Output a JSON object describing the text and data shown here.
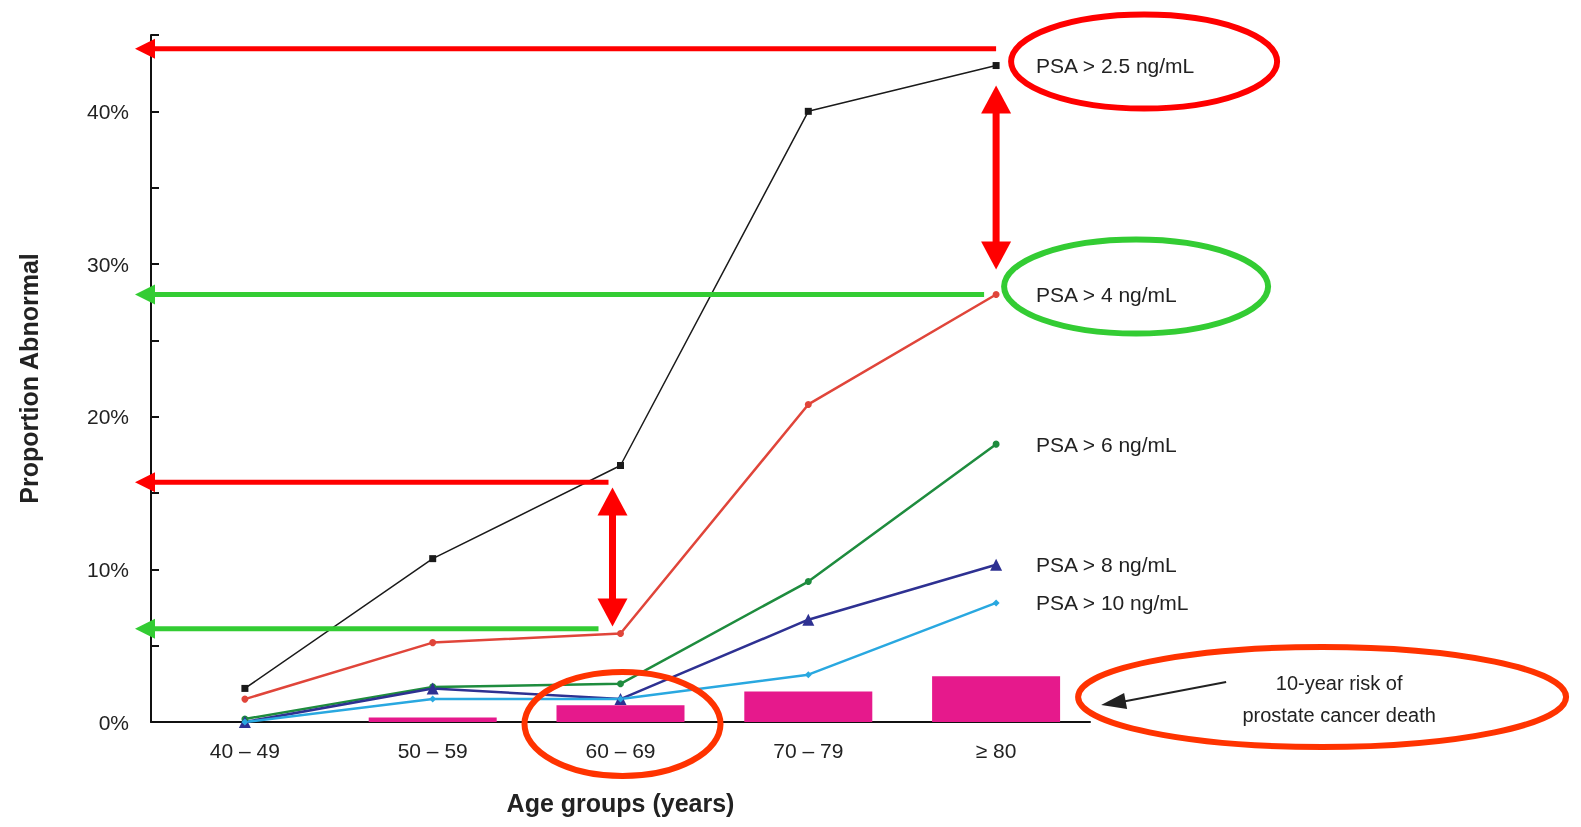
{
  "chart_data": {
    "type": "line",
    "xlabel": "Age groups (years)",
    "ylabel": "Proportion Abnormal",
    "categories": [
      "40 – 49",
      "50 – 59",
      "60 – 69",
      "70 – 79",
      "≥ 80"
    ],
    "ylim": [
      0,
      45
    ],
    "yticks": [
      {
        "value": 0,
        "label": "0%"
      },
      {
        "value": 5,
        "label": null
      },
      {
        "value": 10,
        "label": "10%"
      },
      {
        "value": 15,
        "label": null
      },
      {
        "value": 20,
        "label": "20%"
      },
      {
        "value": 25,
        "label": null
      },
      {
        "value": 30,
        "label": "30%"
      },
      {
        "value": 35,
        "label": null
      },
      {
        "value": 40,
        "label": "40%"
      },
      {
        "value": 45,
        "label": null
      }
    ],
    "grid": false,
    "legend": false,
    "ref_lines": [
      {
        "axis": "y",
        "value": 44.1,
        "color": "#ff0000"
      },
      {
        "axis": "y",
        "value": 28,
        "color": "#33cc33"
      },
      {
        "axis": "y",
        "value": 15.7,
        "color": "#ff0000"
      },
      {
        "axis": "y",
        "value": 6.1,
        "color": "#33cc33"
      }
    ],
    "series": [
      {
        "name": "PSA > 2.5 ng/mL",
        "color": "#1a1a1a",
        "marker": "square",
        "values": [
          2.2,
          10.7,
          16.8,
          40,
          43
        ]
      },
      {
        "name": "PSA > 4 ng/mL",
        "color": "#e0453a",
        "marker": "circle",
        "values": [
          1.5,
          5.2,
          5.8,
          20.8,
          28
        ]
      },
      {
        "name": "PSA > 6 ng/mL",
        "color": "#1e8c3e",
        "marker": "circle",
        "values": [
          0.2,
          2.3,
          2.5,
          9.2,
          18.2
        ]
      },
      {
        "name": "PSA > 8 ng/mL",
        "color": "#2e3192",
        "marker": "triangle",
        "values": [
          0,
          2.2,
          1.5,
          6.7,
          10.3
        ]
      },
      {
        "name": "PSA > 10 ng/mL",
        "color": "#29a8e0",
        "marker": "diamond",
        "values": [
          0,
          1.5,
          1.5,
          3.1,
          7.8
        ]
      },
      {
        "name": "10-year risk of\nprostate cancer death",
        "type": "bar",
        "color": "#e6198c",
        "values": [
          null,
          0.3,
          1.1,
          2.0,
          3.0
        ]
      }
    ]
  }
}
